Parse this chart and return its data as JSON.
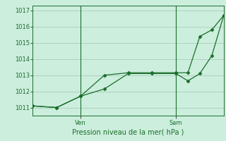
{
  "title": "Pression niveau de la mer( hPa )",
  "bg_color": "#cceedd",
  "grid_color": "#aaccbb",
  "line_color": "#1a6e2a",
  "ylim": [
    1010.5,
    1017.3
  ],
  "yticks": [
    1011,
    1012,
    1013,
    1014,
    1015,
    1016,
    1017
  ],
  "xlim": [
    0,
    16
  ],
  "ven_x": 4,
  "sam_x": 12,
  "x_tick_labels": [
    "Ven",
    "Sam"
  ],
  "series1_x": [
    0,
    2,
    4,
    6,
    8,
    10,
    12,
    13,
    14,
    15,
    16
  ],
  "series1_y": [
    1011.1,
    1011.0,
    1011.7,
    1012.15,
    1013.1,
    1013.1,
    1013.1,
    1012.65,
    1013.1,
    1014.2,
    1016.7
  ],
  "series2_x": [
    0,
    2,
    4,
    6,
    8,
    10,
    12,
    13,
    14,
    15,
    16
  ],
  "series2_y": [
    1011.1,
    1011.0,
    1011.7,
    1013.0,
    1013.15,
    1013.15,
    1013.15,
    1013.15,
    1015.4,
    1015.8,
    1016.7
  ],
  "ylabel_fontsize": 6,
  "xlabel_fontsize": 7,
  "tick_fontsize": 6
}
